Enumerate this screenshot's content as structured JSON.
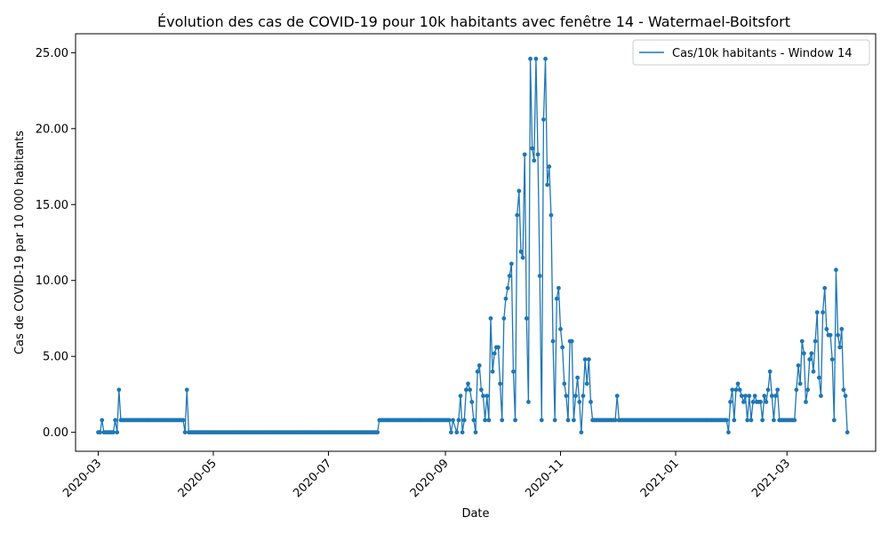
{
  "chart_data": {
    "type": "line",
    "title": "Évolution des cas de COVID-19 pour 10k habitants avec fenêtre 14 - Watermael-Boitsfort",
    "xlabel": "Date",
    "ylabel": "Cas de COVID-19 par 10 000 habitants",
    "x_range": [
      "2020-02-18",
      "2021-04-17"
    ],
    "ylim": [
      -1.25,
      26.25
    ],
    "x_ticks": [
      {
        "date": "2020-03-01",
        "label": "2020-03"
      },
      {
        "date": "2020-05-01",
        "label": "2020-05"
      },
      {
        "date": "2020-07-01",
        "label": "2020-07"
      },
      {
        "date": "2020-09-01",
        "label": "2020-09"
      },
      {
        "date": "2020-11-01",
        "label": "2020-11"
      },
      {
        "date": "2021-01-01",
        "label": "2021-01"
      },
      {
        "date": "2021-03-01",
        "label": "2021-03"
      }
    ],
    "y_ticks": [
      {
        "value": 0,
        "label": "0.00"
      },
      {
        "value": 5,
        "label": "5.00"
      },
      {
        "value": 10,
        "label": "10.00"
      },
      {
        "value": 15,
        "label": "15.00"
      },
      {
        "value": 20,
        "label": "20.00"
      },
      {
        "value": 25,
        "label": "25.00"
      }
    ],
    "grid": false,
    "legend_position": "top-right",
    "series": [
      {
        "name": "Cas/10k habitants - Window 14",
        "color": "#1f77b4",
        "points": [
          [
            "2020-03-01",
            0
          ],
          [
            "2020-03-02",
            0
          ],
          [
            "2020-03-03",
            0.8
          ],
          [
            "2020-03-04",
            0
          ],
          [
            "2020-03-05",
            0
          ],
          [
            "2020-03-06",
            0
          ],
          [
            "2020-03-07",
            0
          ],
          [
            "2020-03-08",
            0
          ],
          [
            "2020-03-09",
            0
          ],
          [
            "2020-03-10",
            0.8
          ],
          [
            "2020-03-11",
            0
          ],
          [
            "2020-03-12",
            2.8
          ],
          [
            "2020-03-13",
            0.8
          ],
          [
            "2020-03-20",
            0.8
          ],
          [
            "2020-03-30",
            0.8
          ],
          [
            "2020-04-10",
            0.8
          ],
          [
            "2020-04-15",
            0.8
          ],
          [
            "2020-04-16",
            0
          ],
          [
            "2020-04-17",
            2.8
          ],
          [
            "2020-04-18",
            0
          ],
          [
            "2020-05-01",
            0
          ],
          [
            "2020-06-01",
            0
          ],
          [
            "2020-07-01",
            0
          ],
          [
            "2020-07-27",
            0
          ],
          [
            "2020-07-28",
            0.8
          ],
          [
            "2020-08-15",
            0.8
          ],
          [
            "2020-09-03",
            0.8
          ],
          [
            "2020-09-04",
            0
          ],
          [
            "2020-09-05",
            0.8
          ],
          [
            "2020-09-07",
            0
          ],
          [
            "2020-09-08",
            0.8
          ],
          [
            "2020-09-09",
            2.4
          ],
          [
            "2020-09-10",
            0
          ],
          [
            "2020-09-11",
            0.8
          ],
          [
            "2020-09-12",
            2.8
          ],
          [
            "2020-09-13",
            3.2
          ],
          [
            "2020-09-14",
            2.8
          ],
          [
            "2020-09-15",
            2.0
          ],
          [
            "2020-09-16",
            0.8
          ],
          [
            "2020-09-17",
            0
          ],
          [
            "2020-09-18",
            4.0
          ],
          [
            "2020-09-19",
            4.4
          ],
          [
            "2020-09-20",
            2.8
          ],
          [
            "2020-09-21",
            2.4
          ],
          [
            "2020-09-22",
            0.8
          ],
          [
            "2020-09-23",
            2.4
          ],
          [
            "2020-09-24",
            0.8
          ],
          [
            "2020-09-25",
            7.5
          ],
          [
            "2020-09-26",
            4.0
          ],
          [
            "2020-09-27",
            5.2
          ],
          [
            "2020-09-28",
            5.6
          ],
          [
            "2020-09-29",
            5.6
          ],
          [
            "2020-09-30",
            3.2
          ],
          [
            "2020-10-01",
            0.8
          ],
          [
            "2020-10-02",
            7.5
          ],
          [
            "2020-10-03",
            8.8
          ],
          [
            "2020-10-04",
            9.5
          ],
          [
            "2020-10-05",
            10.3
          ],
          [
            "2020-10-06",
            11.1
          ],
          [
            "2020-10-07",
            4.0
          ],
          [
            "2020-10-08",
            0.8
          ],
          [
            "2020-10-09",
            14.3
          ],
          [
            "2020-10-10",
            15.9
          ],
          [
            "2020-10-11",
            11.9
          ],
          [
            "2020-10-12",
            11.5
          ],
          [
            "2020-10-13",
            18.3
          ],
          [
            "2020-10-14",
            7.5
          ],
          [
            "2020-10-15",
            2.0
          ],
          [
            "2020-10-16",
            24.6
          ],
          [
            "2020-10-17",
            18.7
          ],
          [
            "2020-10-18",
            17.9
          ],
          [
            "2020-10-19",
            24.6
          ],
          [
            "2020-10-20",
            18.3
          ],
          [
            "2020-10-21",
            10.3
          ],
          [
            "2020-10-22",
            0.8
          ],
          [
            "2020-10-23",
            20.6
          ],
          [
            "2020-10-24",
            24.6
          ],
          [
            "2020-10-25",
            16.3
          ],
          [
            "2020-10-26",
            17.5
          ],
          [
            "2020-10-27",
            14.3
          ],
          [
            "2020-10-28",
            6.0
          ],
          [
            "2020-10-29",
            0.8
          ],
          [
            "2020-10-30",
            8.8
          ],
          [
            "2020-10-31",
            9.5
          ],
          [
            "2020-11-01",
            6.8
          ],
          [
            "2020-11-02",
            5.6
          ],
          [
            "2020-11-03",
            3.2
          ],
          [
            "2020-11-04",
            2.4
          ],
          [
            "2020-11-05",
            0.8
          ],
          [
            "2020-11-06",
            6.0
          ],
          [
            "2020-11-07",
            6.0
          ],
          [
            "2020-11-08",
            0.8
          ],
          [
            "2020-11-09",
            2.4
          ],
          [
            "2020-11-10",
            3.6
          ],
          [
            "2020-11-11",
            2.0
          ],
          [
            "2020-11-12",
            0
          ],
          [
            "2020-11-13",
            2.4
          ],
          [
            "2020-11-14",
            4.8
          ],
          [
            "2020-11-15",
            3.2
          ],
          [
            "2020-11-16",
            4.8
          ],
          [
            "2020-11-17",
            2.0
          ],
          [
            "2020-11-18",
            0.8
          ],
          [
            "2020-11-30",
            0.8
          ],
          [
            "2020-12-01",
            2.4
          ],
          [
            "2020-12-02",
            0.8
          ],
          [
            "2020-12-15",
            0.8
          ],
          [
            "2021-01-01",
            0.8
          ],
          [
            "2021-01-20",
            0.8
          ],
          [
            "2021-01-28",
            0.8
          ],
          [
            "2021-01-29",
            0
          ],
          [
            "2021-01-30",
            2.0
          ],
          [
            "2021-01-31",
            2.8
          ],
          [
            "2021-02-01",
            0.8
          ],
          [
            "2021-02-02",
            2.8
          ],
          [
            "2021-02-03",
            3.2
          ],
          [
            "2021-02-04",
            2.8
          ],
          [
            "2021-02-05",
            2.4
          ],
          [
            "2021-02-06",
            2.0
          ],
          [
            "2021-02-07",
            2.4
          ],
          [
            "2021-02-08",
            0.8
          ],
          [
            "2021-02-09",
            2.4
          ],
          [
            "2021-02-10",
            0.8
          ],
          [
            "2021-02-11",
            2.0
          ],
          [
            "2021-02-12",
            2.4
          ],
          [
            "2021-02-13",
            2.0
          ],
          [
            "2021-02-14",
            2.0
          ],
          [
            "2021-02-15",
            2.0
          ],
          [
            "2021-02-16",
            0.8
          ],
          [
            "2021-02-17",
            2.4
          ],
          [
            "2021-02-18",
            2.0
          ],
          [
            "2021-02-19",
            2.8
          ],
          [
            "2021-02-20",
            4.0
          ],
          [
            "2021-02-21",
            2.4
          ],
          [
            "2021-02-22",
            0.8
          ],
          [
            "2021-02-23",
            2.4
          ],
          [
            "2021-02-24",
            2.8
          ],
          [
            "2021-02-25",
            0.8
          ],
          [
            "2021-02-26",
            0.8
          ],
          [
            "2021-02-27",
            0.8
          ],
          [
            "2021-02-28",
            0.8
          ],
          [
            "2021-03-01",
            0.8
          ],
          [
            "2021-03-02",
            0.8
          ],
          [
            "2021-03-03",
            0.8
          ],
          [
            "2021-03-04",
            0.8
          ],
          [
            "2021-03-05",
            0.8
          ],
          [
            "2021-03-06",
            2.8
          ],
          [
            "2021-03-07",
            4.4
          ],
          [
            "2021-03-08",
            3.2
          ],
          [
            "2021-03-09",
            6.0
          ],
          [
            "2021-03-10",
            5.2
          ],
          [
            "2021-03-11",
            2.0
          ],
          [
            "2021-03-12",
            2.8
          ],
          [
            "2021-03-13",
            4.8
          ],
          [
            "2021-03-14",
            5.2
          ],
          [
            "2021-03-15",
            4.0
          ],
          [
            "2021-03-16",
            6.0
          ],
          [
            "2021-03-17",
            7.9
          ],
          [
            "2021-03-18",
            3.6
          ],
          [
            "2021-03-19",
            2.4
          ],
          [
            "2021-03-20",
            7.9
          ],
          [
            "2021-03-21",
            9.5
          ],
          [
            "2021-03-22",
            6.8
          ],
          [
            "2021-03-23",
            6.4
          ],
          [
            "2021-03-24",
            6.4
          ],
          [
            "2021-03-25",
            4.8
          ],
          [
            "2021-03-26",
            0.8
          ],
          [
            "2021-03-27",
            10.7
          ],
          [
            "2021-03-28",
            6.4
          ],
          [
            "2021-03-29",
            5.6
          ],
          [
            "2021-03-30",
            6.8
          ],
          [
            "2021-03-31",
            2.8
          ],
          [
            "2021-04-01",
            2.4
          ],
          [
            "2021-04-02",
            0
          ]
        ]
      }
    ]
  }
}
